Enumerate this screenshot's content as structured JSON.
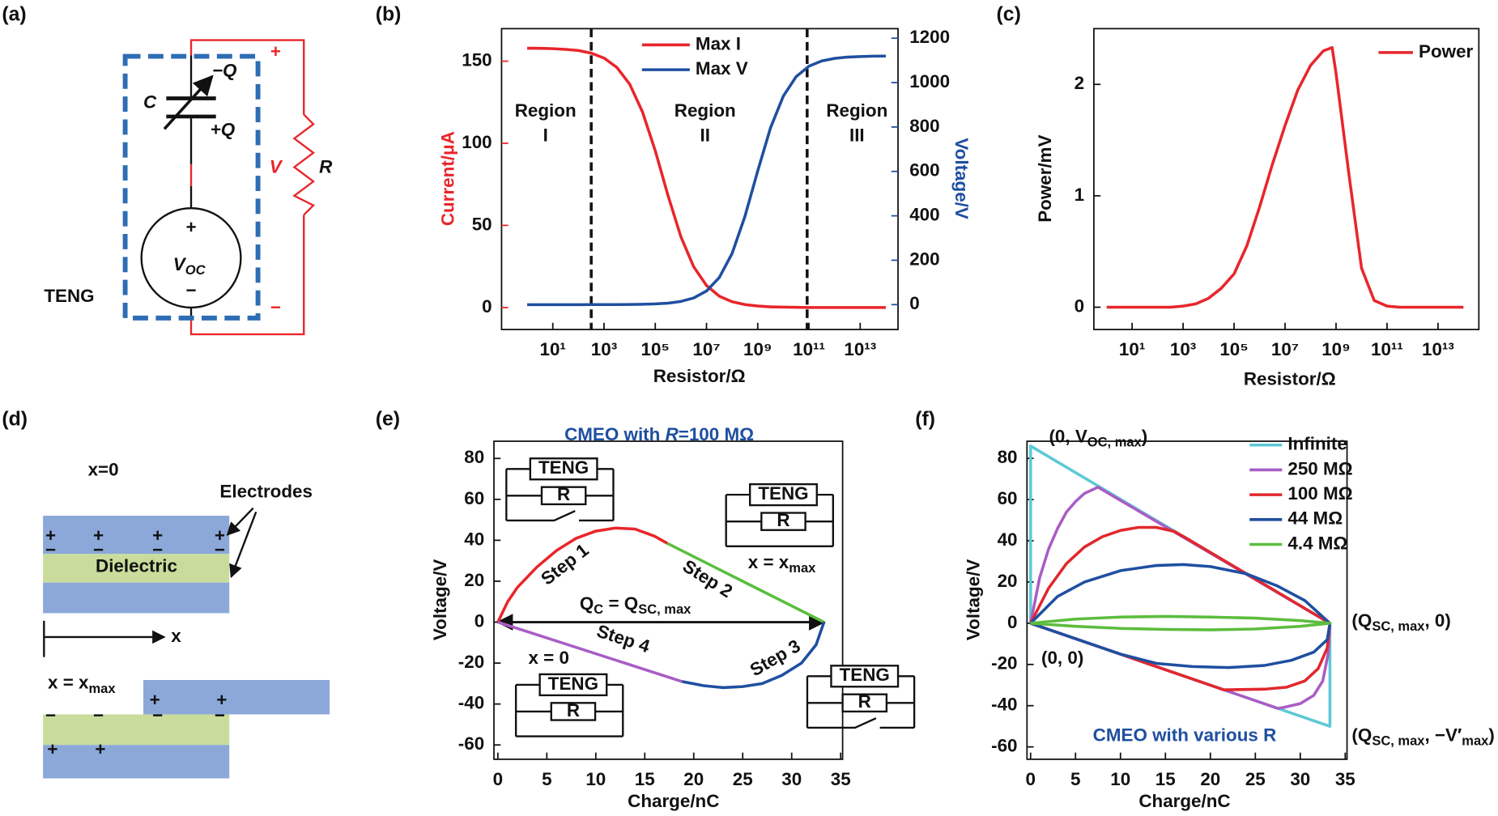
{
  "panel_labels": [
    "(a)",
    "(b)",
    "(c)",
    "(d)",
    "(e)",
    "(f)"
  ],
  "panels": {
    "a": {
      "C": "C",
      "minus_q": "−Q",
      "plus_q": "+Q",
      "v": "V",
      "r": "R",
      "plus_red": "+",
      "minus_red": "−",
      "plus": "+",
      "minus": "−",
      "voc": [
        "V",
        {
          "sub": "OC"
        }
      ],
      "teng": "TENG"
    },
    "d": {
      "x0": "x=0",
      "electrodes": "Electrodes",
      "dielectric": "Dielectric",
      "axis": "x",
      "xmax": [
        "x = x",
        {
          "sub": "max"
        }
      ],
      "signs_top": [
        "+",
        "+",
        "+",
        "+"
      ],
      "signs_top2": [
        "−",
        "−",
        "−",
        "−"
      ],
      "signs_b1": [
        "+",
        "+"
      ],
      "signs_b2": [
        "−",
        "−",
        "−",
        "−"
      ],
      "signs_b3": [
        "+",
        "+"
      ]
    }
  },
  "chart_data": [
    {
      "type": "line",
      "xscale": "log",
      "xlabel": "Resistor/Ω",
      "ylabel": "Current/μA",
      "y2label": "Voltage/V",
      "x": [
        1,
        3.162,
        10,
        31.62,
        100,
        316.2,
        1000,
        3162,
        10000,
        31620,
        100000,
        316200,
        1000000,
        3162000,
        10000000,
        31620000,
        100000000,
        316200000,
        1000000000,
        3162000000,
        10000000000,
        31620000000,
        100000000000,
        316200000000,
        1000000000000,
        3162000000000,
        10000000000000,
        31620000000000,
        100000000000000
      ],
      "xlim": [
        0.1,
        300000000000000
      ],
      "xticks": [
        {
          "value": 10,
          "label": "10¹"
        },
        {
          "value": 1000,
          "label": "10³"
        },
        {
          "value": 100000,
          "label": "10⁵"
        },
        {
          "value": 10000000,
          "label": "10⁷"
        },
        {
          "value": 1000000000,
          "label": "10⁹"
        },
        {
          "value": 100000000000,
          "label": "10¹¹"
        },
        {
          "value": 10000000000000,
          "label": "10¹³"
        }
      ],
      "ylim": [
        -13.4,
        169.8
      ],
      "yticks": [
        0,
        50,
        100,
        150
      ],
      "y2lim": [
        -112,
        1243
      ],
      "y2ticks": [
        0,
        200,
        400,
        600,
        800,
        1000,
        1200
      ],
      "series": [
        {
          "name": "Max I",
          "color": "#e8262b",
          "values": [
            157.9,
            157.8,
            157.6,
            157.2,
            156.5,
            154.9,
            151.9,
            146.2,
            136.0,
            119.1,
            95.4,
            68.0,
            43.1,
            24.8,
            13.4,
            6.9,
            3.5,
            1.8,
            0.9,
            0.4,
            0.2,
            0.1,
            0,
            0,
            0,
            0,
            0,
            0,
            0
          ]
        },
        {
          "name": "Max V",
          "color": "#1f4fa0",
          "axis": "y2",
          "values": [
            0,
            0,
            0,
            0,
            0,
            0.1,
            0.2,
            0.3,
            0.7,
            1.5,
            3.2,
            6.8,
            14.3,
            29.8,
            61.2,
            122.2,
            230.5,
            396.9,
            601.8,
            796.2,
            939.6,
            1026.9,
            1073.9,
            1097.8,
            1109.4,
            1115.0,
            1117.6,
            1118.9,
            1119.5
          ]
        }
      ],
      "vlines": [
        316,
        85000000000
      ],
      "annotations": [
        [
          "Region",
          "I"
        ],
        [
          "Region",
          "II"
        ],
        [
          "Region",
          "III"
        ]
      ],
      "legend": "upper right"
    },
    {
      "type": "line",
      "xscale": "log",
      "xlabel": "Resistor/Ω",
      "ylabel": "Power/mV",
      "x": [
        1,
        3.162,
        10,
        31.62,
        100,
        316.2,
        1000,
        3162,
        10000,
        31620,
        100000,
        316200,
        1000000,
        3162000,
        10000000,
        31620000,
        100000000,
        316200000,
        700000000,
        1000000000,
        3162000000,
        10000000000,
        31620000000,
        100000000000,
        316200000000,
        1000000000000,
        3162000000000,
        10000000000000,
        31620000000000,
        100000000000000
      ],
      "xlim": [
        0.316,
        400000000000000
      ],
      "xticks": [
        {
          "value": 10,
          "label": "10¹"
        },
        {
          "value": 1000,
          "label": "10³"
        },
        {
          "value": 100000,
          "label": "10⁵"
        },
        {
          "value": 10000000,
          "label": "10⁷"
        },
        {
          "value": 1000000000,
          "label": "10⁹"
        },
        {
          "value": 100000000000,
          "label": "10¹¹"
        },
        {
          "value": 10000000000000,
          "label": "10¹³"
        }
      ],
      "ylim": [
        -0.2,
        2.5
      ],
      "yticks": [
        0,
        1,
        2
      ],
      "series": [
        {
          "name": "Power",
          "color": "#e8262b",
          "values": [
            0,
            0,
            0,
            0,
            0,
            0,
            0.01,
            0.03,
            0.08,
            0.17,
            0.3,
            0.55,
            0.9,
            1.28,
            1.63,
            1.95,
            2.17,
            2.3,
            2.33,
            2.1,
            1.2,
            0.35,
            0.06,
            0.01,
            0,
            0,
            0,
            0,
            0,
            0
          ]
        }
      ],
      "legend": "upper right"
    },
    {
      "type": "line",
      "title": [
        "CMEO with ",
        {
          "i": "R"
        },
        "=100 MΩ"
      ],
      "xlabel": "Charge/nC",
      "ylabel": "Voltage/V",
      "xlim": [
        -0.4,
        35.2
      ],
      "xticks": [
        0,
        5,
        10,
        15,
        20,
        25,
        30,
        35
      ],
      "ylim": [
        -67,
        88.4
      ],
      "yticks": [
        -60,
        -40,
        -20,
        0,
        20,
        40,
        60,
        80
      ],
      "series": [
        {
          "name": "Step 1",
          "color": "#e8262b",
          "x": [
            0,
            1,
            2,
            4,
            6,
            8,
            10,
            12,
            14,
            16,
            17.3
          ],
          "values": [
            0,
            10,
            17,
            27,
            35,
            41,
            44.5,
            46,
            45.5,
            42,
            38.5
          ]
        },
        {
          "name": "Step 2",
          "color": "#5cbd3e",
          "x": [
            17.3,
            25,
            33.3
          ],
          "values": [
            38.5,
            20,
            0
          ]
        },
        {
          "name": "Step 3",
          "color": "#1f4fa0",
          "x": [
            33.3,
            32.5,
            31,
            29,
            27,
            25,
            23,
            21,
            18.8
          ],
          "values": [
            0,
            -11,
            -20,
            -26,
            -30,
            -31.5,
            -32,
            -31,
            -29
          ]
        },
        {
          "name": "Step 4",
          "color": "#a95dc5",
          "x": [
            18.8,
            0
          ],
          "values": [
            -29,
            0
          ]
        }
      ],
      "qline": {
        "label": [
          "Q",
          {
            "sub": "C"
          },
          " = Q",
          {
            "sub": "SC, max"
          }
        ],
        "x": [
          0,
          33.3
        ],
        "y": 0
      },
      "notes": [
        [
          "x = x",
          {
            "sub": "max"
          }
        ],
        "x = 0"
      ],
      "insets": [
        [
          "TENG",
          "R"
        ],
        [
          "TENG",
          "R"
        ],
        [
          "TENG",
          "R"
        ],
        [
          "TENG",
          "R"
        ]
      ]
    },
    {
      "type": "line",
      "xlabel": "Charge/nC",
      "ylabel": "Voltage/V",
      "xlim": [
        -0.4,
        35.2
      ],
      "xticks": [
        0,
        5,
        10,
        15,
        20,
        25,
        30,
        35
      ],
      "ylim": [
        -66,
        88.3
      ],
      "yticks": [
        -60,
        -40,
        -20,
        0,
        20,
        40,
        60,
        80
      ],
      "series": [
        {
          "name": "Infinite",
          "color": "#5cc9d6",
          "x": [
            0,
            0,
            33.3,
            33.3,
            0
          ],
          "values": [
            0,
            86,
            0,
            -50,
            0
          ]
        },
        {
          "name": "250 MΩ",
          "color": "#a95dc5",
          "x": [
            0,
            1,
            2,
            3,
            4,
            5,
            6,
            7.5,
            33.3,
            33.1,
            32.5,
            31.5,
            30,
            28,
            27.5,
            0
          ],
          "values": [
            0,
            22,
            36,
            46,
            54,
            59,
            63,
            66,
            0,
            -15,
            -28,
            -35,
            -39,
            -41,
            -41.3,
            0
          ]
        },
        {
          "name": "100 MΩ",
          "color": "#e0282e",
          "x": [
            0,
            2,
            4,
            6,
            8,
            10,
            12,
            14,
            16,
            17.3,
            33.3,
            33,
            32,
            30.5,
            28.5,
            26,
            21.5,
            0
          ],
          "values": [
            0,
            17,
            29,
            37,
            42,
            45,
            46.5,
            46.5,
            44.5,
            41.3,
            0,
            -12,
            -22,
            -28,
            -31,
            -32,
            -32.3,
            0
          ]
        },
        {
          "name": "44 MΩ",
          "color": "#1f4fa0",
          "x": [
            0,
            3,
            6,
            10,
            14,
            17,
            20,
            24,
            27.5,
            30.5,
            33.3,
            33,
            31.5,
            29,
            26,
            22,
            18,
            14,
            10,
            6,
            0
          ],
          "values": [
            0,
            13,
            20,
            25.5,
            28,
            28.5,
            27.5,
            24,
            18,
            11,
            0,
            -8,
            -14,
            -18,
            -20.5,
            -21.5,
            -21,
            -19.5,
            -15,
            -9,
            0
          ]
        },
        {
          "name": "4.4 MΩ",
          "color": "#5cbd3e",
          "x": [
            0,
            5,
            10,
            15,
            20,
            25,
            30,
            33.3,
            30,
            25,
            20,
            15,
            10,
            5,
            0
          ],
          "values": [
            0,
            2,
            3,
            3.3,
            3,
            2.5,
            1.3,
            0,
            -1.5,
            -2.8,
            -3.2,
            -3,
            -2.5,
            -1.5,
            0
          ]
        }
      ],
      "annotations": [
        [
          "(0, V",
          {
            "sub": "OC, max"
          },
          ")"
        ],
        [
          "(Q",
          {
            "sub": "SC, max"
          },
          ", 0)"
        ],
        "(0, 0)",
        [
          "(Q",
          {
            "sub": "SC, max"
          },
          ", −V′",
          {
            "sub": "max"
          },
          ")"
        ],
        "CMEO with various R"
      ],
      "legend": "upper right"
    }
  ]
}
